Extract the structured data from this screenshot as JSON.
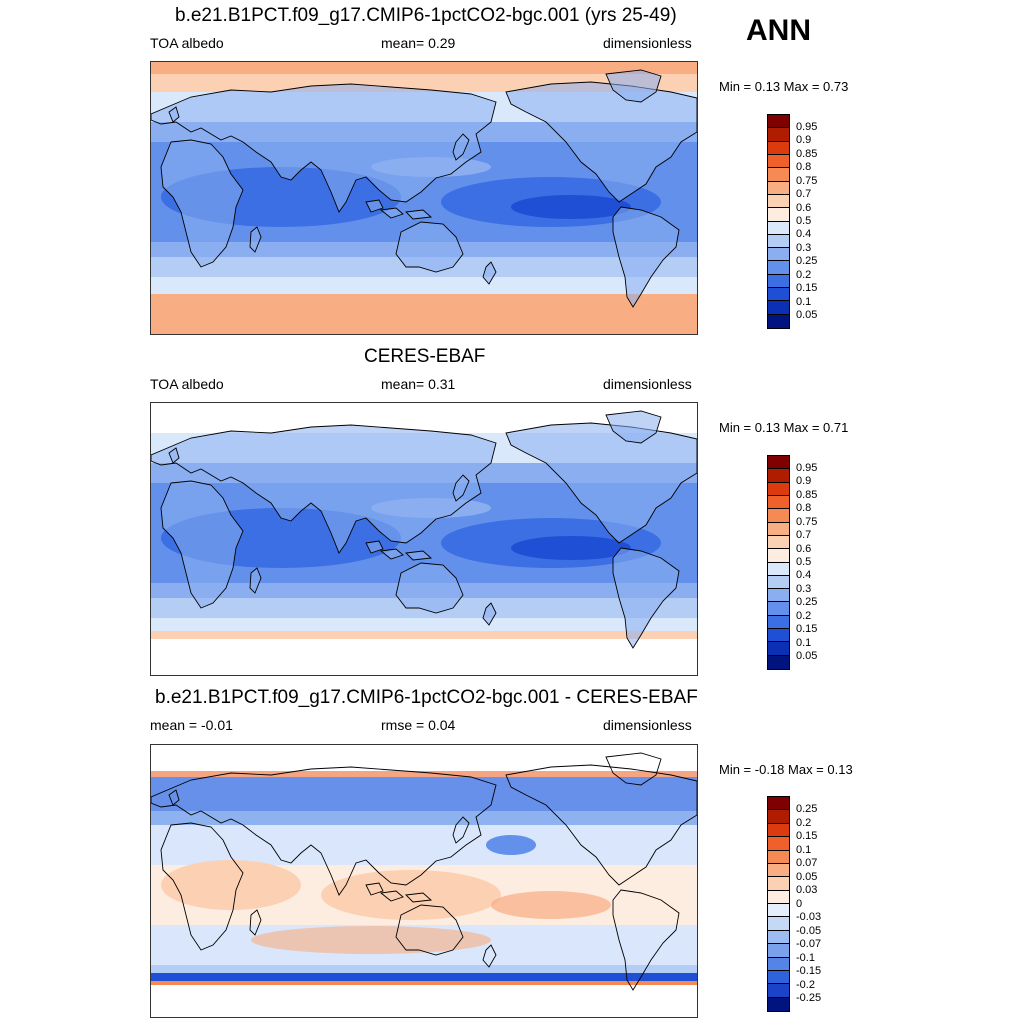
{
  "season": "ANN",
  "panels": [
    {
      "title": "b.e21.B1PCT.f09_g17.CMIP6-1pctCO2-bgc.001 (yrs 25-49)",
      "left_label": "TOA albedo",
      "center_label": "mean=   0.29",
      "right_label": "dimensionless",
      "minmax": "Min =   0.13 Max =   0.73",
      "palette": "abs",
      "colorbar_labels": [
        "0.95",
        "0.9",
        "0.85",
        "0.8",
        "0.75",
        "0.7",
        "0.6",
        "0.5",
        "0.4",
        "0.3",
        "0.25",
        "0.2",
        "0.15",
        "0.1",
        "0.05"
      ]
    },
    {
      "title": "CERES-EBAF",
      "left_label": "TOA albedo",
      "center_label": "mean=   0.31",
      "right_label": "dimensionless",
      "minmax": "Min =   0.13 Max =   0.71",
      "palette": "abs",
      "colorbar_labels": [
        "0.95",
        "0.9",
        "0.85",
        "0.8",
        "0.75",
        "0.7",
        "0.6",
        "0.5",
        "0.4",
        "0.3",
        "0.25",
        "0.2",
        "0.15",
        "0.1",
        "0.05"
      ]
    },
    {
      "title": "b.e21.B1PCT.f09_g17.CMIP6-1pctCO2-bgc.001 - CERES-EBAF",
      "left_label": "mean =  -0.01",
      "center_label": "rmse =   0.04",
      "right_label": "dimensionless",
      "minmax": "Min =  -0.18 Max =   0.13",
      "palette": "diff",
      "colorbar_labels": [
        "0.25",
        "0.2",
        "0.15",
        "0.1",
        "0.07",
        "0.05",
        "0.03",
        "0",
        "-0.03",
        "-0.05",
        "-0.07",
        "-0.1",
        "-0.15",
        "-0.2",
        "-0.25"
      ]
    }
  ],
  "colors": {
    "abs": [
      "#7f0000",
      "#b01c00",
      "#db3b0e",
      "#f0602a",
      "#f68a55",
      "#f8ad82",
      "#fbd0b3",
      "#fdece0",
      "#d9e8fb",
      "#b4cdf5",
      "#8aaef0",
      "#6390ea",
      "#3b6fe3",
      "#1f4fd4",
      "#0b30b4",
      "#00137f"
    ],
    "diff": [
      "#7f0000",
      "#b01c00",
      "#db3b0e",
      "#f0602a",
      "#f68a55",
      "#f8ad82",
      "#fbd0b3",
      "#fdece0",
      "#e4eefc",
      "#c5d9f7",
      "#9dbcf2",
      "#7ba1ed",
      "#5484e6",
      "#2f62dd",
      "#1a43c8",
      "#00137f"
    ]
  }
}
